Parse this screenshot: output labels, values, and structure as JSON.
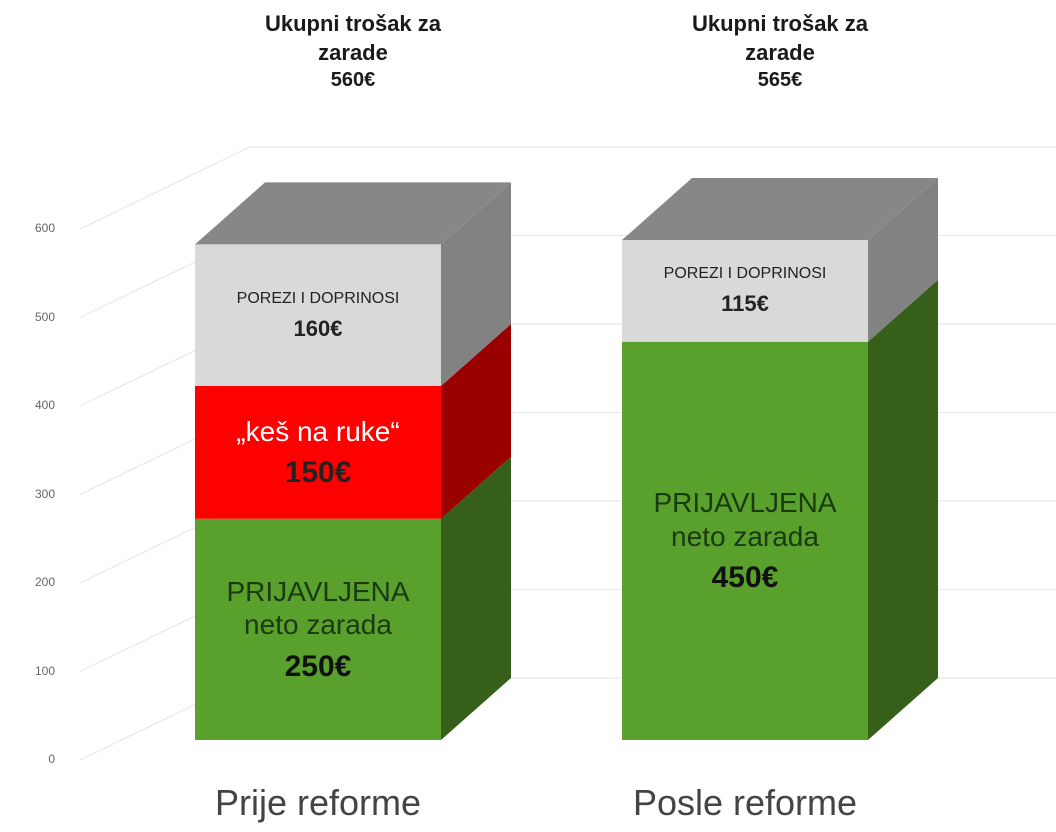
{
  "chart_data": {
    "type": "bar",
    "stacked": true,
    "three_d": true,
    "categories": [
      "Prije reforme",
      "Posle reforme"
    ],
    "series": [
      {
        "name": "PRIJAVLJENA neto zarada",
        "color": "#5aa02c",
        "values": [
          250,
          450
        ],
        "value_labels": [
          "250€",
          "450€"
        ]
      },
      {
        "name": "„keš na ruke“",
        "color": "#ff0000",
        "values": [
          150,
          null
        ],
        "value_labels": [
          "150€",
          null
        ]
      },
      {
        "name": "POREZI I DOPRINOSI",
        "color": "#d9d9d9",
        "values": [
          160,
          115
        ],
        "value_labels": [
          "160€",
          "115€"
        ]
      }
    ],
    "totals": {
      "title": "Ukupni trošak za zarade",
      "values": [
        560,
        565
      ],
      "value_labels": [
        "560€",
        "565€"
      ]
    },
    "ylim": [
      0,
      600
    ],
    "yticks": [
      0,
      100,
      200,
      300,
      400,
      500,
      600
    ],
    "grid": true
  }
}
